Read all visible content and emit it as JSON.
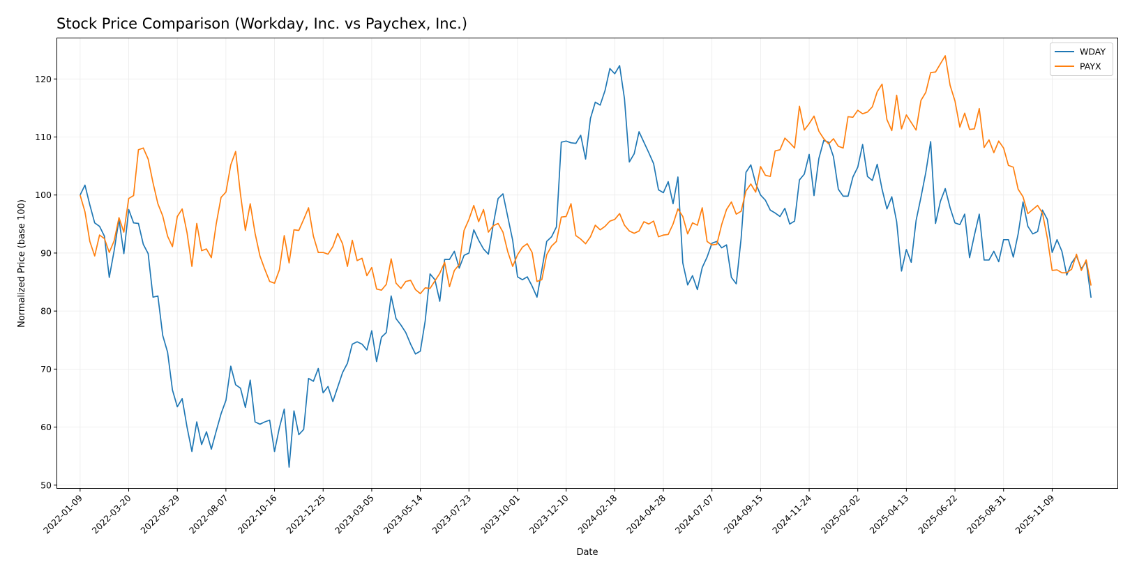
{
  "chart_data": {
    "type": "line",
    "title": "Stock Price Comparison (Workday, Inc. vs Paychex, Inc.)",
    "xlabel": "Date",
    "ylabel": "Normalized Price (base 100)",
    "ylim": [
      49.5,
      127
    ],
    "yticks": [
      50,
      60,
      70,
      80,
      90,
      100,
      110,
      120
    ],
    "xlim": [
      "2021-12-07",
      "2026-02-11"
    ],
    "xticks": [
      "2022-01-09",
      "2022-03-20",
      "2022-05-29",
      "2022-08-07",
      "2022-10-16",
      "2022-12-25",
      "2023-03-05",
      "2023-05-14",
      "2023-07-23",
      "2023-10-01",
      "2023-12-10",
      "2024-02-18",
      "2024-04-28",
      "2024-07-07",
      "2024-09-15",
      "2024-11-24",
      "2025-02-02",
      "2025-04-13",
      "2025-06-22",
      "2025-08-31",
      "2025-11-09"
    ],
    "grid": true,
    "legend_position": "top-right",
    "x_start": "2022-01-09",
    "x_step_days": 7,
    "series": [
      {
        "name": "WDAY",
        "color": "#1f77b4",
        "values": [
          100,
          101.7,
          98.3,
          95.2,
          94.6,
          92.9,
          85.8,
          90.4,
          95.8,
          89.9,
          97.5,
          95.2,
          95.1,
          91.5,
          89.9,
          82.4,
          82.6,
          75.8,
          72.9,
          66.4,
          63.5,
          64.9,
          60,
          55.8,
          60.9,
          57,
          59.2,
          56.2,
          59.3,
          62.3,
          64.6,
          70.5,
          67.3,
          66.7,
          63.4,
          68.1,
          60.9,
          60.5,
          60.9,
          61.2,
          55.8,
          59.9,
          63.1,
          53.1,
          62.8,
          58.7,
          59.6,
          68.4,
          67.9,
          70.1,
          65.9,
          67,
          64.4,
          66.9,
          69.4,
          71,
          74.3,
          74.7,
          74.3,
          73.3,
          76.6,
          71.3,
          75.5,
          76.3,
          82.6,
          78.7,
          77.6,
          76.3,
          74.3,
          72.6,
          73.1,
          78.3,
          86.4,
          85.4,
          81.7,
          88.9,
          88.9,
          90.3,
          87.4,
          89.6,
          90,
          94,
          92.2,
          90.7,
          89.8,
          94.9,
          99.4,
          100.2,
          96.2,
          92.2,
          85.9,
          85.4,
          85.9,
          84.3,
          82.4,
          87.1,
          92,
          92.8,
          94.5,
          109.1,
          109.3,
          109,
          108.9,
          110.3,
          106.2,
          113.2,
          116,
          115.5,
          118,
          121.8,
          120.9,
          122.3,
          116.6,
          105.7,
          107.1,
          110.9,
          109.1,
          107.3,
          105.4,
          100.9,
          100.4,
          102.3,
          98.5,
          103.1,
          88.3,
          84.5,
          86.1,
          83.7,
          87.5,
          89.3,
          91.7,
          92,
          90.9,
          91.4,
          85.8,
          84.7,
          92.5,
          103.9,
          105.2,
          102,
          100,
          99.1,
          97.4,
          96.9,
          96.3,
          97.7,
          95,
          95.5,
          102.6,
          103.6,
          107,
          99.9,
          106.3,
          109.4,
          109.1,
          106.6,
          101,
          99.8,
          99.8,
          103.1,
          104.8,
          108.7,
          103.2,
          102.5,
          105.3,
          101,
          97.6,
          99.7,
          95.4,
          86.9,
          90.6,
          88.4,
          95.6,
          99.6,
          103.9,
          109.2,
          95.1,
          98.9,
          101.1,
          97.8,
          95.2,
          94.9,
          96.7,
          89.2,
          93.1,
          96.7,
          88.8,
          88.8,
          90.3,
          88.5,
          92.3,
          92.3,
          89.3,
          93.3,
          98.8,
          94.6,
          93.3,
          93.7,
          97.4,
          95.8,
          90.1,
          92.3,
          90.3,
          86.2,
          88.3,
          89.5,
          87.3,
          88.5,
          82.3
        ]
      },
      {
        "name": "PAYX",
        "color": "#ff7f0e",
        "values": [
          100,
          97.1,
          92,
          89.5,
          93.1,
          92.5,
          90.1,
          92.1,
          96.1,
          93.6,
          99.4,
          99.9,
          107.8,
          108.1,
          106.2,
          102.1,
          98.5,
          96.4,
          92.9,
          91.1,
          96.3,
          97.6,
          93.5,
          87.7,
          95.1,
          90.4,
          90.7,
          89.2,
          95,
          99.6,
          100.5,
          105.2,
          107.5,
          100.1,
          93.9,
          98.5,
          93.4,
          89.5,
          87.2,
          85.1,
          84.8,
          87.1,
          93,
          88.3,
          94,
          93.9,
          95.8,
          97.8,
          92.9,
          90.1,
          90.1,
          89.8,
          91.1,
          93.4,
          91.6,
          87.7,
          92.2,
          88.7,
          89.1,
          86.1,
          87.5,
          83.8,
          83.6,
          84.6,
          89,
          84.8,
          83.9,
          85.1,
          85.3,
          83.7,
          83,
          84,
          83.9,
          85.2,
          86.5,
          88.4,
          84.2,
          87,
          88,
          93.9,
          95.8,
          98.2,
          95.4,
          97.5,
          93.6,
          94.7,
          95.1,
          93.6,
          90.2,
          87.7,
          89.7,
          91,
          91.6,
          90.1,
          85.1,
          85.4,
          89.7,
          91.2,
          92,
          96.2,
          96.3,
          98.5,
          93,
          92.4,
          91.6,
          92.8,
          94.8,
          94,
          94.6,
          95.5,
          95.8,
          96.8,
          94.8,
          93.8,
          93.4,
          93.8,
          95.4,
          95,
          95.5,
          92.8,
          93.1,
          93.2,
          95,
          97.6,
          96.3,
          93.3,
          95.2,
          94.8,
          97.8,
          92,
          91.4,
          91.5,
          94.9,
          97.5,
          98.8,
          96.7,
          97.2,
          100.7,
          101.9,
          100.5,
          104.9,
          103.4,
          103.2,
          107.6,
          107.8,
          109.8,
          109,
          108.1,
          115.3,
          111.2,
          112.3,
          113.6,
          111,
          109.7,
          108.8,
          109.7,
          108.4,
          108.1,
          113.5,
          113.4,
          114.6,
          114,
          114.3,
          115.2,
          117.8,
          119.1,
          113,
          111.1,
          117.2,
          111.4,
          113.8,
          112.5,
          111.2,
          116.3,
          117.7,
          121.1,
          121.2,
          122.6,
          124,
          118.9,
          116.2,
          111.7,
          114.1,
          111.3,
          111.4,
          114.9,
          108.2,
          109.5,
          107.3,
          109.3,
          108.1,
          105.1,
          104.8,
          101,
          99.7,
          96.8,
          97.5,
          98.2,
          96.9,
          92.6,
          87,
          87.1,
          86.6,
          86.6,
          87.2,
          89.8,
          87,
          88.8,
          84.4
        ]
      }
    ]
  }
}
